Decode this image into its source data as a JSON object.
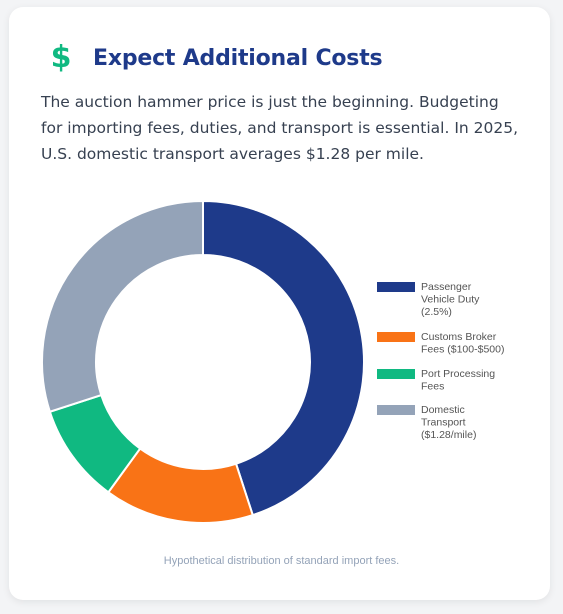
{
  "header": {
    "icon": "dollar-icon",
    "title": "Expect Additional Costs"
  },
  "intro": "The auction hammer price is just the beginning. Budgeting for importing fees, duties, and transport is essential. In 2025, U.S. domestic transport averages $1.28 per mile.",
  "caption": "Hypothetical distribution of standard import fees.",
  "chart_data": {
    "type": "doughnut",
    "slices": [
      {
        "label": [
          "Passenger",
          "Vehicle Duty",
          "(2.5%)"
        ],
        "value": 45,
        "color": "#1e3a8a"
      },
      {
        "label": [
          "Customs Broker",
          "Fees ($100-$500)"
        ],
        "value": 15,
        "color": "#f97316"
      },
      {
        "label": [
          "Port Processing",
          "Fees"
        ],
        "value": 10,
        "color": "#10b981"
      },
      {
        "label": [
          "Domestic",
          "Transport",
          "($1.28/mile)"
        ],
        "value": 30,
        "color": "#94a3b8"
      }
    ],
    "legend_position": "right"
  }
}
